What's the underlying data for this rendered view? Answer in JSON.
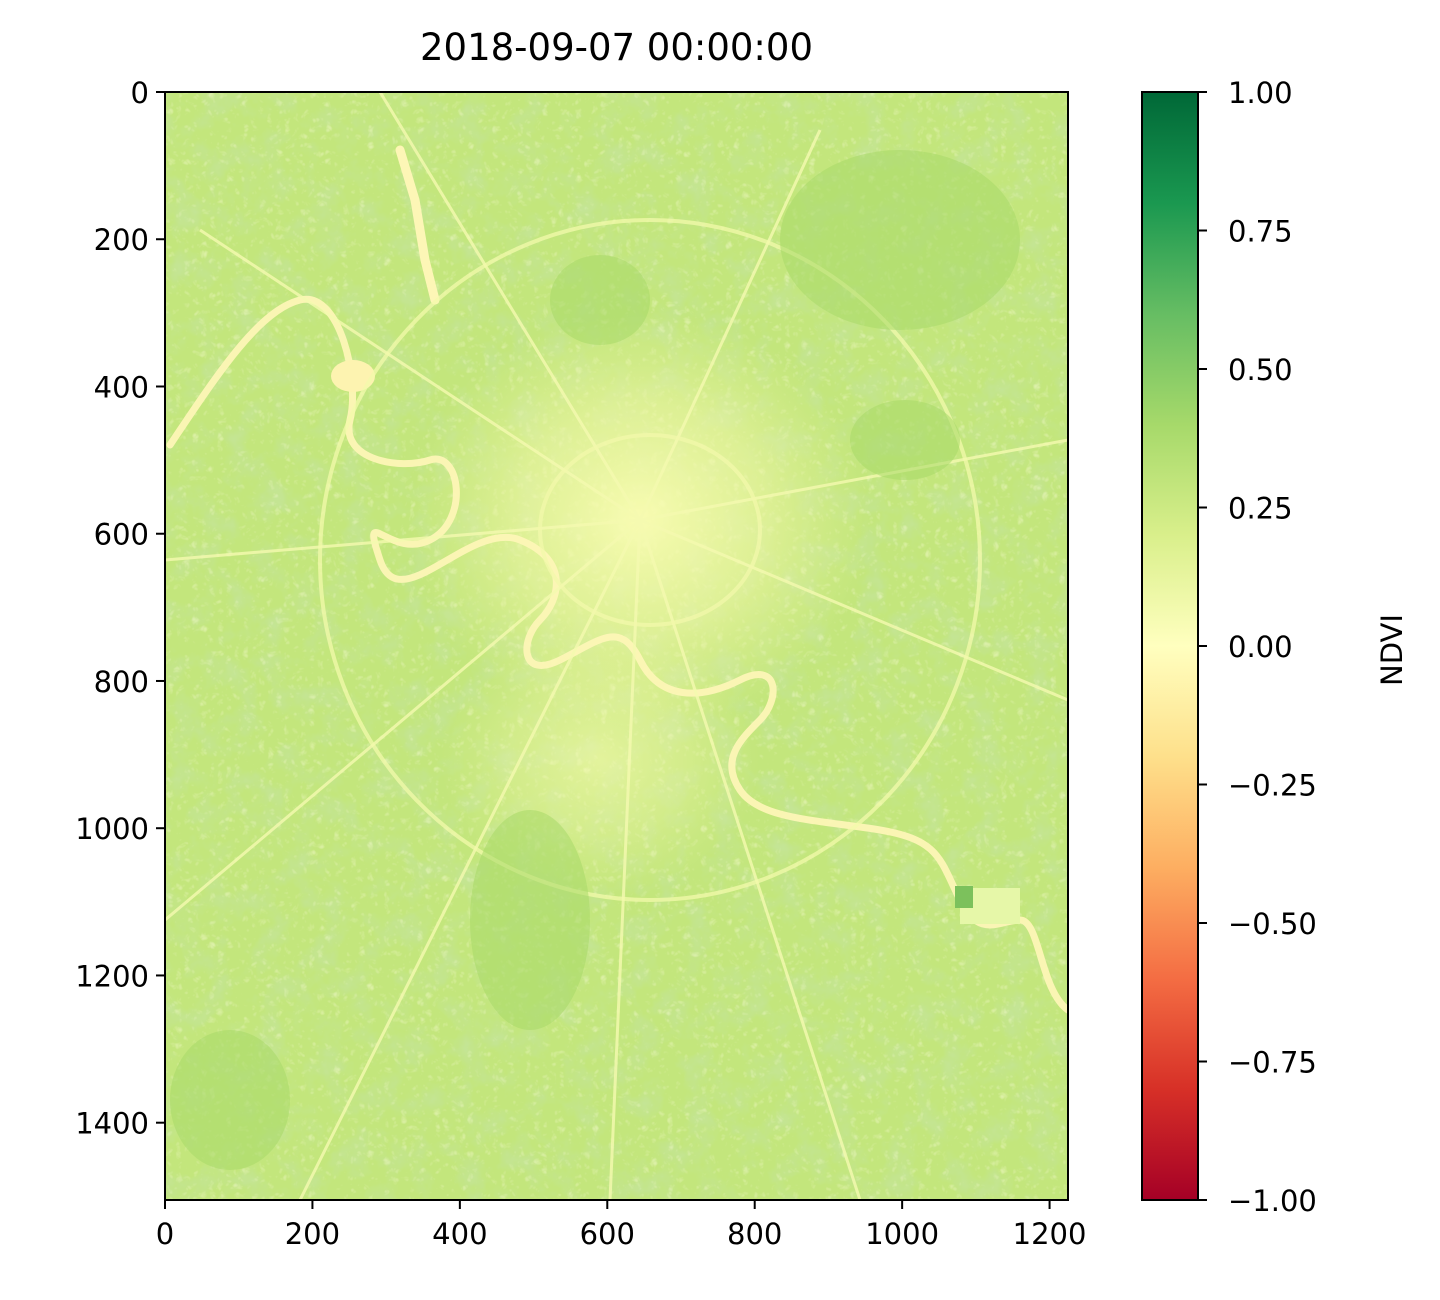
{
  "chart_data": [
    {
      "type": "heatmap",
      "title": "2018-09-07 00:00:00",
      "xlabel": "",
      "ylabel": "",
      "x_ticks": [
        "0",
        "200",
        "400",
        "600",
        "800",
        "1000",
        "1200"
      ],
      "y_ticks": [
        "0",
        "200",
        "400",
        "600",
        "800",
        "1000",
        "1200",
        "1400"
      ],
      "xlim": [
        0,
        1225
      ],
      "ylim": [
        1505,
        0
      ],
      "colormap": "RdYlGn",
      "image_description_values": {
        "dominant_range": [
          0.0,
          0.4
        ],
        "urban_core_value": 0.05,
        "vegetation_value": 0.3
      },
      "colorbar": {
        "label": "NDVI",
        "range": [
          -1.0,
          1.0
        ],
        "ticks": [
          "1.00",
          "0.75",
          "0.50",
          "0.25",
          "0.00",
          "−0.25",
          "−0.50",
          "−0.75",
          "−1.00"
        ],
        "tick_values": [
          1.0,
          0.75,
          0.5,
          0.25,
          0.0,
          -0.25,
          -0.5,
          -0.75,
          -1.0
        ],
        "colors": [
          "#006837",
          "#1a9850",
          "#66bd63",
          "#a6d96a",
          "#d9ef8b",
          "#ffffbf",
          "#fee08b",
          "#fdae61",
          "#f46d43",
          "#d73027",
          "#a50026"
        ]
      }
    }
  ]
}
